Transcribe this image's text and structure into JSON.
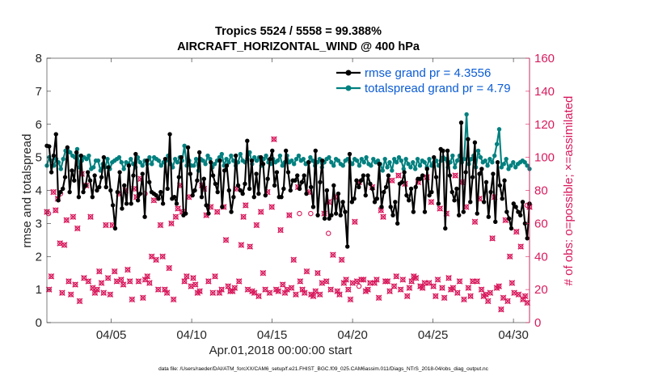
{
  "chart_data": {
    "type": "line",
    "title_line1": "Tropics 5524 / 5558 = 99.388%",
    "title_line2": "AIRCRAFT_HORIZONTAL_WIND @ 400 hPa",
    "xlabel": "Apr.01,2018 00:00:00 start",
    "ylabel_left": "rmse and totalspread",
    "ylabel_right": "# of obs: o=possible; ×=assimilated",
    "xlim": [
      1.0,
      31.0
    ],
    "ylim_left": [
      0,
      8
    ],
    "ylim_right": [
      0,
      160
    ],
    "xticks": [
      5,
      10,
      15,
      20,
      25,
      30
    ],
    "xtick_labels": [
      "04/05",
      "04/10",
      "04/15",
      "04/20",
      "04/25",
      "04/30"
    ],
    "yticks_left": [
      0,
      1,
      2,
      3,
      4,
      5,
      6,
      7,
      8
    ],
    "yticks_right": [
      0,
      20,
      40,
      60,
      80,
      100,
      120,
      140,
      160
    ],
    "colors": {
      "rmse": "#000000",
      "spread": "#00807f",
      "obs": "#d81a5d",
      "legend_text": "#0b5cd5",
      "right_axis": "#d81a5d"
    },
    "legend_position": "top-right",
    "footer": "data file: /Users/raeder/DAI/ATM_forcXX/CAM6_setup/f.e21.FHIST_BGC.f09_025.CAM6assim.011/Diags_NTrS_2018-04/obs_diag_output.nc",
    "series": [
      {
        "name": "rmse grand pr = 4.3556",
        "axis": "left",
        "color": "#000000",
        "values": [
          5.35,
          5.33,
          4.55,
          5.05,
          5.7,
          3.7,
          3.95,
          4.05,
          4.4,
          5.3,
          3.95,
          4.6,
          4.3,
          5.15,
          3.8,
          5.05,
          3.95,
          4.15,
          4.55,
          4.3,
          3.8,
          4.45,
          4.0,
          4.1,
          4.4,
          5.0,
          4.1,
          4.7,
          4.0,
          3.55,
          2.85,
          3.95,
          4.55,
          3.45,
          4.15,
          3.6,
          4.75,
          3.6,
          4.45,
          5.1,
          3.7,
          3.9,
          4.5,
          3.2,
          4.9,
          4.25,
          3.95,
          3.9,
          3.85,
          3.75,
          3.95,
          3.6,
          4.95,
          4.05,
          5.7,
          3.75,
          3.8,
          3.6,
          4.4,
          5.0,
          3.25,
          3.3,
          5.3,
          4.5,
          3.85,
          4.0,
          4.3,
          5.15,
          3.8,
          4.35,
          3.55,
          3.3,
          4.85,
          4.45,
          4.2,
          3.95,
          4.9,
          3.5,
          4.6,
          4.75,
          4.0,
          3.35,
          3.8,
          5.05,
          4.15,
          4.0,
          3.9,
          4.2,
          5.5,
          4.05,
          4.9,
          3.8,
          4.5,
          3.9,
          5.0,
          4.8,
          3.85,
          4.35,
          4.95,
          5.2,
          4.15,
          4.55,
          3.8,
          3.8,
          4.05,
          5.2,
          4.55,
          4.0,
          4.3,
          4.3,
          4.45,
          4.05,
          4.25,
          4.45,
          3.9,
          4.85,
          4.1,
          3.5,
          5.2,
          3.25,
          4.25,
          4.9,
          3.15,
          4.0,
          3.15,
          3.25,
          4.15,
          3.3,
          3.9,
          3.25,
          3.65,
          3.35,
          2.3,
          5.1,
          3.65,
          3.75,
          4.3,
          4.1,
          4.3,
          4.45,
          3.85,
          4.45,
          4.2,
          4.05,
          3.65,
          3.75,
          4.8,
          3.5,
          3.95,
          4.1,
          4.45,
          3.5,
          3.25,
          3.65,
          3.0,
          4.2,
          4.25,
          4.55,
          3.85,
          3.7,
          4.05,
          3.35,
          4.1,
          4.35,
          4.35,
          4.45,
          3.35,
          4.65,
          3.85,
          3.95,
          5.0,
          4.4,
          3.6,
          5.25,
          5.2,
          2.85,
          5.2,
          4.45,
          3.95,
          3.7,
          4.05,
          3.25,
          6.05,
          3.35,
          4.55,
          5.55,
          3.65,
          4.4,
          5.45,
          3.3,
          4.5,
          4.65,
          3.65,
          4.25,
          3.2,
          3.95,
          4.5,
          3.05,
          4.85,
          4.15,
          3.75,
          4.3,
          3.35,
          3.15,
          2.85,
          3.6,
          3.5,
          3.35,
          3.25,
          3.65,
          3.0,
          2.55,
          3.6
        ]
      },
      {
        "name": "totalspread grand pr = 4.79",
        "axis": "left",
        "color": "#00807f",
        "values": [
          4.75,
          5.0,
          4.9,
          4.75,
          4.95,
          4.85,
          4.65,
          4.95,
          5.2,
          5.2,
          5.15,
          5.05,
          5.0,
          5.25,
          4.7,
          4.9,
          5.0,
          4.95,
          5.05,
          4.65,
          4.7,
          4.9,
          4.9,
          4.6,
          4.8,
          4.7,
          4.95,
          4.65,
          4.85,
          4.9,
          4.95,
          5.0,
          4.85,
          4.65,
          4.85,
          4.8,
          4.95,
          4.8,
          4.7,
          5.0,
          4.85,
          4.75,
          4.9,
          4.8,
          5.0,
          4.8,
          5.0,
          4.95,
          4.9,
          4.75,
          4.85,
          4.9,
          5.05,
          4.8,
          4.7,
          4.95,
          4.85,
          5.0,
          4.9,
          5.35,
          4.75,
          4.9,
          4.75,
          4.75,
          4.95,
          4.6,
          4.95,
          4.9,
          4.8,
          5.05,
          4.95,
          4.7,
          4.8,
          4.9,
          5.0,
          5.1,
          4.75,
          4.95,
          4.85,
          5.05,
          4.9,
          4.75,
          4.85,
          5.1,
          4.9,
          4.85,
          4.95,
          5.15,
          4.8,
          5.0,
          4.9,
          5.0,
          4.75,
          4.95,
          5.05,
          4.85,
          4.8,
          4.95,
          4.85,
          4.9,
          5.05,
          4.75,
          4.85,
          5.05,
          4.85,
          4.9,
          4.8,
          4.95,
          5.05,
          4.9,
          4.95,
          4.8,
          4.85,
          5.0,
          4.9,
          4.75,
          4.85,
          4.95,
          4.7,
          4.85,
          4.95,
          5.0,
          4.85,
          4.75,
          4.95,
          4.9,
          4.8,
          4.75,
          4.9,
          4.95,
          4.85,
          4.8,
          4.95,
          4.9,
          4.75,
          4.95,
          4.85,
          5.0,
          4.8,
          4.75,
          4.95,
          4.85,
          4.9,
          4.8,
          4.6,
          4.95,
          4.7,
          4.85,
          4.6,
          4.95,
          4.85,
          5.0,
          4.9,
          4.65,
          4.95,
          4.8,
          4.7,
          4.85,
          4.65,
          4.95,
          4.75,
          4.9,
          4.85,
          4.7,
          4.95,
          4.75,
          4.85,
          4.9,
          4.75,
          4.9,
          5.0,
          4.95,
          4.7,
          4.85,
          5.05,
          4.7,
          4.9,
          5.05,
          4.85,
          4.95,
          6.3,
          4.8,
          4.95,
          5.05,
          4.7,
          5.2,
          5.0,
          4.85,
          4.9,
          4.75,
          4.95,
          4.85,
          5.05,
          5.4,
          5.85,
          4.7,
          4.8,
          4.95,
          4.65,
          4.75,
          4.85,
          4.7,
          4.8,
          4.85,
          4.9,
          4.85,
          4.75,
          4.65
        ]
      }
    ],
    "obs_assimilated": [
      67,
      20,
      28,
      79,
      68,
      75,
      48,
      18,
      47,
      62,
      25,
      17,
      64,
      23,
      57,
      13,
      90,
      27,
      83,
      25,
      64,
      21,
      18,
      20,
      31,
      24,
      18,
      59,
      27,
      17,
      59,
      31,
      25,
      78,
      26,
      23,
      80,
      32,
      25,
      14,
      81,
      76,
      25,
      87,
      15,
      26,
      28,
      24,
      40,
      74,
      38,
      20,
      59,
      40,
      20,
      18,
      33,
      60,
      14,
      64,
      69,
      83,
      67,
      25,
      28,
      76,
      22,
      27,
      23,
      18,
      19,
      83,
      81,
      65,
      25,
      70,
      18,
      28,
      67,
      18,
      20,
      70,
      50,
      22,
      19,
      19,
      21,
      81,
      25,
      47,
      64,
      71,
      20,
      46,
      19,
      18,
      59,
      16,
      67,
      30,
      20,
      79,
      18,
      70,
      111,
      20,
      19,
      56,
      23,
      18,
      20,
      65,
      21,
      38,
      17,
      82,
      25,
      20,
      18,
      31,
      79,
      17,
      16,
      19,
      30,
      17,
      24,
      66,
      25,
      73,
      20,
      41,
      76,
      19,
      17,
      38,
      24,
      26,
      20,
      14,
      24,
      61,
      25,
      85,
      26,
      26,
      19,
      20,
      24,
      82,
      24,
      26,
      15,
      68,
      64,
      25,
      25,
      19,
      86,
      22,
      28,
      89,
      20,
      26,
      84,
      16,
      21,
      25,
      28,
      27,
      85,
      22,
      21,
      24,
      88,
      24,
      73,
      22,
      16,
      26,
      69,
      21,
      15,
      66,
      27,
      20,
      21,
      89,
      18,
      25,
      85,
      14,
      70,
      21,
      16,
      25,
      61,
      25,
      75,
      20,
      16,
      17,
      13,
      18,
      51,
      76,
      21,
      22,
      8,
      15,
      62,
      13,
      40,
      24,
      18,
      55,
      17,
      46,
      14,
      16,
      12,
      70
    ],
    "obs_possible_extra": [
      {
        "x": 1.1,
        "value": 66
      },
      {
        "x": 1.85,
        "value": 78
      },
      {
        "x": 7.1,
        "value": 78
      },
      {
        "x": 16.7,
        "value": 66
      },
      {
        "x": 17.4,
        "value": 66
      },
      {
        "x": 18.5,
        "value": 54
      },
      {
        "x": 20.4,
        "value": 22
      },
      {
        "x": 30.85,
        "value": 71
      }
    ]
  },
  "footer_text": "data file: /Users/raeder/DAI/ATM_forcXX/CAM6_setup/f.e21.FHIST_BGC.f09_025.CAM6assim.011/Diags_NTrS_2018-04/obs_diag_output.nc"
}
